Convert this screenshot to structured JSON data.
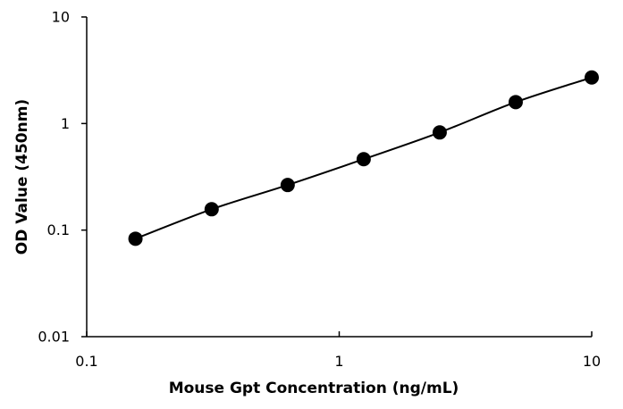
{
  "chart_data": {
    "type": "scatter",
    "title": "",
    "xlabel": "Mouse Gpt Concentration (ng/mL)",
    "ylabel": "OD Value (450nm)",
    "x_scale": "log",
    "y_scale": "log",
    "xlim": [
      0.1,
      10
    ],
    "ylim": [
      0.01,
      10
    ],
    "x_ticks": [
      0.1,
      1,
      10
    ],
    "x_tick_labels": [
      "0.1",
      "1",
      "10"
    ],
    "y_ticks": [
      0.01,
      0.1,
      1,
      10
    ],
    "y_tick_labels": [
      "0.01",
      "0.1",
      "1",
      "10"
    ],
    "grid": false,
    "legend": "none",
    "series": [
      {
        "x": [
          0.156,
          0.3125,
          0.625,
          1.25,
          2.5,
          5,
          10
        ],
        "y": [
          0.083,
          0.157,
          0.265,
          0.463,
          0.825,
          1.589,
          2.705
        ],
        "marker": "filled-circle",
        "line": "smooth",
        "color": "#000000"
      }
    ]
  }
}
